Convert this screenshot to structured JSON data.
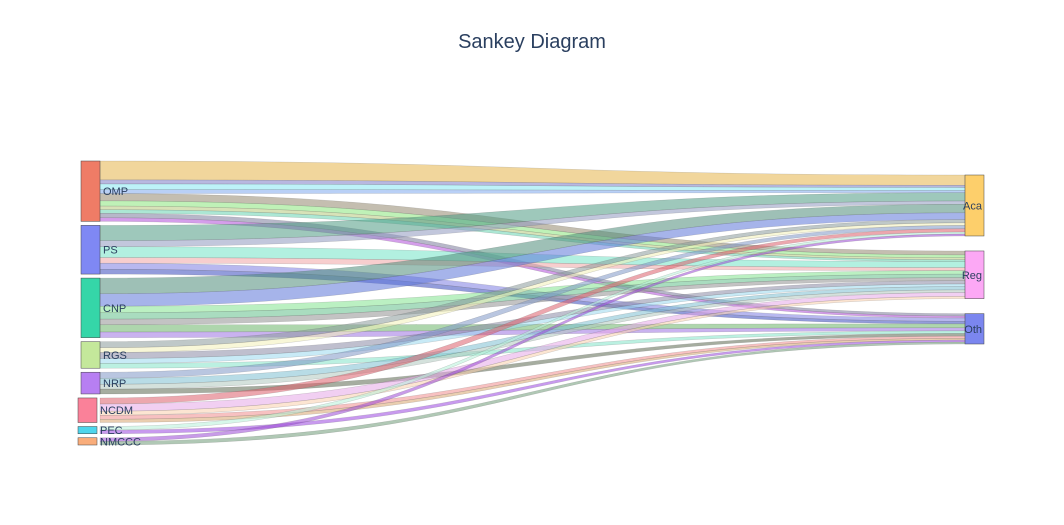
{
  "title": "Sankey Diagram",
  "chart_data": {
    "type": "sankey",
    "sources": [
      {
        "name": "OMP",
        "color": "#ef7c66"
      },
      {
        "name": "PS",
        "color": "#7f88f4"
      },
      {
        "name": "CNP",
        "color": "#35d6a8"
      },
      {
        "name": "RGS",
        "color": "#c4e89b"
      },
      {
        "name": "NRP",
        "color": "#b77ff2"
      },
      {
        "name": "NCDM",
        "color": "#fa8199"
      },
      {
        "name": "PEC",
        "color": "#4ed5ec"
      },
      {
        "name": "NMCCC",
        "color": "#f9ad7b"
      }
    ],
    "targets": [
      {
        "name": "Aca",
        "color": "#fdcf6b"
      },
      {
        "name": "Reg",
        "color": "#fca8f5"
      },
      {
        "name": "Oth",
        "color": "#7b86ef"
      }
    ],
    "links": [
      {
        "s": 0,
        "t": 0,
        "v": 4.7,
        "color": "#e6b44a"
      },
      {
        "s": 0,
        "t": 0,
        "v": 1.0,
        "color": "#7d7dc6"
      },
      {
        "s": 0,
        "t": 0,
        "v": 1.4,
        "color": "#86e7f3"
      },
      {
        "s": 0,
        "t": 0,
        "v": 1.0,
        "color": "#7fa9ef"
      },
      {
        "s": 0,
        "t": 1,
        "v": 1.8,
        "color": "#948870"
      },
      {
        "s": 0,
        "t": 1,
        "v": 1.3,
        "color": "#8ae67c"
      },
      {
        "s": 0,
        "t": 1,
        "v": 0.9,
        "color": "#b7cb7d"
      },
      {
        "s": 0,
        "t": 1,
        "v": 0.9,
        "color": "#67d3b0"
      },
      {
        "s": 0,
        "t": 2,
        "v": 1.1,
        "color": "#7c7c9c"
      },
      {
        "s": 0,
        "t": 2,
        "v": 0.9,
        "color": "#b04fd9"
      },
      {
        "s": 1,
        "t": 0,
        "v": 3.8,
        "color": "#4f9a84"
      },
      {
        "s": 1,
        "t": 0,
        "v": 1.5,
        "color": "#8f99c0"
      },
      {
        "s": 1,
        "t": 1,
        "v": 2.7,
        "color": "#72e3c6"
      },
      {
        "s": 1,
        "t": 1,
        "v": 1.4,
        "color": "#f0a5a5"
      },
      {
        "s": 1,
        "t": 2,
        "v": 1.5,
        "color": "#7e7ee2"
      },
      {
        "s": 1,
        "t": 2,
        "v": 1.2,
        "color": "#3a4bbd"
      },
      {
        "s": 2,
        "t": 0,
        "v": 3.9,
        "color": "#4f8d7a"
      },
      {
        "s": 2,
        "t": 0,
        "v": 3.1,
        "color": "#5c77d8"
      },
      {
        "s": 2,
        "t": 1,
        "v": 1.6,
        "color": "#83e48f"
      },
      {
        "s": 2,
        "t": 1,
        "v": 1.6,
        "color": "#62bf8a"
      },
      {
        "s": 2,
        "t": 1,
        "v": 1.4,
        "color": "#929292"
      },
      {
        "s": 2,
        "t": 2,
        "v": 1.8,
        "color": "#6cb46a"
      },
      {
        "s": 2,
        "t": 2,
        "v": 1.4,
        "color": "#9c73e2"
      },
      {
        "s": 3,
        "t": 0,
        "v": 1.5,
        "color": "#8a9a9a"
      },
      {
        "s": 3,
        "t": 0,
        "v": 1.2,
        "color": "#f3f0b8"
      },
      {
        "s": 3,
        "t": 1,
        "v": 1.5,
        "color": "#8a8aa6"
      },
      {
        "s": 3,
        "t": 1,
        "v": 1.2,
        "color": "#9bd8ee"
      },
      {
        "s": 3,
        "t": 2,
        "v": 1.2,
        "color": "#84e4c8"
      },
      {
        "s": 4,
        "t": 0,
        "v": 1.5,
        "color": "#7f98c6"
      },
      {
        "s": 4,
        "t": 1,
        "v": 1.5,
        "color": "#7dbfd2"
      },
      {
        "s": 4,
        "t": 1,
        "v": 1.2,
        "color": "#b0c8c0"
      },
      {
        "s": 4,
        "t": 2,
        "v": 1.2,
        "color": "#5c6a52"
      },
      {
        "s": 5,
        "t": 0,
        "v": 1.5,
        "color": "#dc5f6c"
      },
      {
        "s": 5,
        "t": 1,
        "v": 1.8,
        "color": "#e6a8e8"
      },
      {
        "s": 5,
        "t": 1,
        "v": 1.0,
        "color": "#f9cfad"
      },
      {
        "s": 5,
        "t": 2,
        "v": 1.0,
        "color": "#f08e8e"
      },
      {
        "s": 5,
        "t": 2,
        "v": 0.8,
        "color": "#d9a56f"
      },
      {
        "s": 6,
        "t": 0,
        "v": 0.9,
        "color": "#b7f0d8"
      },
      {
        "s": 6,
        "t": 2,
        "v": 0.9,
        "color": "#9a47e0"
      },
      {
        "s": 7,
        "t": 0,
        "v": 0.9,
        "color": "#9a49d6"
      },
      {
        "s": 7,
        "t": 2,
        "v": 0.9,
        "color": "#6f9a78"
      }
    ]
  }
}
